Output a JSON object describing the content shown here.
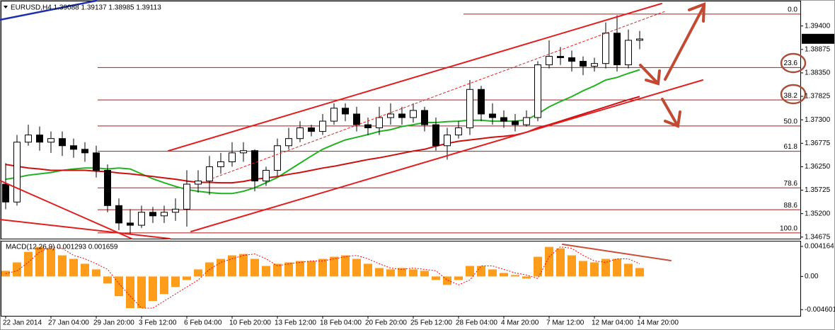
{
  "chart_data": [
    {
      "type": "candlestick",
      "title": "EURUSD,H4  1.39088 1.39137 1.38985 1.39113",
      "categories": [
        "22 Jan 2014",
        null,
        null,
        null,
        "27 Jan 04:00",
        null,
        null,
        null,
        "29 Jan 20:00",
        null,
        null,
        null,
        "3 Feb 12:00",
        null,
        null,
        null,
        "6 Feb 04:00",
        null,
        null,
        null,
        "10 Feb 20:00",
        null,
        null,
        null,
        "13 Feb 12:00",
        null,
        null,
        null,
        "18 Feb 04:00",
        null,
        null,
        null,
        "20 Feb 20:00",
        null,
        null,
        null,
        "25 Feb 12:00",
        null,
        null,
        null,
        "28 Feb 04:00",
        null,
        null,
        null,
        "4 Mar 20:00",
        null,
        null,
        null,
        "7 Mar 12:00",
        null,
        null,
        null,
        "12 Mar 04:00",
        null,
        null,
        null,
        "14 Mar 20:00"
      ],
      "open": [
        1.3586,
        1.3546,
        1.368,
        1.3696,
        1.368,
        1.3688,
        1.3672,
        1.3664,
        1.3656,
        1.3617,
        1.3538,
        1.3499,
        1.3494,
        1.3523,
        1.3515,
        1.3523,
        1.353,
        1.3586,
        1.3593,
        1.3625,
        1.3636,
        1.3656,
        1.3661,
        1.3593,
        1.3617,
        1.3672,
        1.3688,
        1.3712,
        1.3704,
        1.3727,
        1.3756,
        1.3743,
        1.3719,
        1.3712,
        1.3735,
        1.3743,
        1.3735,
        1.3751,
        1.3719,
        1.3672,
        1.3696,
        1.3712,
        1.3798,
        1.3743,
        1.3735,
        1.3727,
        1.3719,
        1.3735,
        1.3853,
        1.3872,
        1.3869,
        1.3861,
        1.385,
        1.3856,
        1.3924,
        1.3853,
        1.3908
      ],
      "high": [
        1.3633,
        1.3696,
        1.3719,
        1.3715,
        1.3704,
        1.3704,
        1.3688,
        1.368,
        1.3672,
        1.363,
        1.3554,
        1.353,
        1.3538,
        1.3535,
        1.3538,
        1.3554,
        1.3617,
        1.3617,
        1.3649,
        1.3656,
        1.368,
        1.368,
        1.3664,
        1.3625,
        1.3688,
        1.3712,
        1.3727,
        1.3719,
        1.3743,
        1.3767,
        1.3767,
        1.3759,
        1.3735,
        1.3759,
        1.3767,
        1.3759,
        1.3767,
        1.3759,
        1.3735,
        1.3712,
        1.3727,
        1.3819,
        1.3806,
        1.3767,
        1.3751,
        1.3743,
        1.3751,
        1.3861,
        1.3908,
        1.3893,
        1.3885,
        1.3872,
        1.3869,
        1.3948,
        1.3964,
        1.3932,
        1.3929
      ],
      "low": [
        1.353,
        1.3538,
        1.3672,
        1.3661,
        1.3656,
        1.3649,
        1.3645,
        1.3636,
        1.3601,
        1.3523,
        1.3483,
        1.3475,
        1.3488,
        1.3499,
        1.3499,
        1.3504,
        1.3491,
        1.3567,
        1.3562,
        1.3609,
        1.3625,
        1.3636,
        1.357,
        1.3582,
        1.3604,
        1.3664,
        1.368,
        1.3693,
        1.3696,
        1.3719,
        1.3727,
        1.3704,
        1.3696,
        1.3696,
        1.3719,
        1.3719,
        1.3724,
        1.3704,
        1.3661,
        1.3641,
        1.3688,
        1.3696,
        1.3727,
        1.3719,
        1.3712,
        1.3704,
        1.3715,
        1.3727,
        1.3845,
        1.3853,
        1.3838,
        1.383,
        1.3838,
        1.3845,
        1.3838,
        1.3845,
        1.3888
      ],
      "close": [
        1.3546,
        1.368,
        1.3696,
        1.368,
        1.3688,
        1.3672,
        1.3664,
        1.3656,
        1.3617,
        1.3538,
        1.3499,
        1.3494,
        1.3523,
        1.3515,
        1.3523,
        1.353,
        1.3586,
        1.3593,
        1.3625,
        1.3636,
        1.3656,
        1.3661,
        1.3593,
        1.3617,
        1.3672,
        1.3688,
        1.3712,
        1.3704,
        1.3727,
        1.3756,
        1.3743,
        1.3719,
        1.3712,
        1.3735,
        1.3743,
        1.3735,
        1.3751,
        1.3719,
        1.3672,
        1.3696,
        1.3712,
        1.3798,
        1.3743,
        1.3735,
        1.3727,
        1.3719,
        1.3735,
        1.3853,
        1.3872,
        1.3869,
        1.3861,
        1.385,
        1.3856,
        1.3924,
        1.3853,
        1.3908,
        1.3911
      ],
      "up_color": "#ffffff",
      "down_color": "#000000",
      "moving_averages": [
        {
          "color": "#22b322",
          "values": [
            1.3597,
            1.3601,
            1.3606,
            1.3609,
            1.3612,
            1.3617,
            1.362,
            1.3622,
            1.3622,
            1.362,
            1.3622,
            1.362,
            1.3609,
            1.3598,
            1.3589,
            1.3581,
            1.3574,
            1.357,
            1.3567,
            1.3565,
            1.3565,
            1.357,
            1.3578,
            1.3589,
            1.3601,
            1.3617,
            1.3633,
            1.3649,
            1.3664,
            1.3675,
            1.3685,
            1.3691,
            1.3697,
            1.3704,
            1.3708,
            1.3715,
            1.3719,
            1.3724,
            1.3724,
            1.3726,
            1.3727,
            1.3729,
            1.3729,
            1.3727,
            1.3727,
            1.3727,
            1.373,
            1.3743,
            1.3759,
            1.3771,
            1.3782,
            1.3795,
            1.3806,
            1.3819,
            1.3825,
            1.3834,
            1.3842
          ]
        },
        {
          "color": "#cc1111",
          "values": [
            1.363,
            1.3626,
            1.3622,
            1.362,
            1.3617,
            1.3617,
            1.3617,
            1.3617,
            1.3615,
            1.3614,
            1.3611,
            1.3609,
            1.3606,
            1.3603,
            1.36,
            1.3597,
            1.3593,
            1.359,
            1.359,
            1.3589,
            1.3589,
            1.3592,
            1.3597,
            1.36,
            1.3603,
            1.3608,
            1.3612,
            1.3617,
            1.3622,
            1.3626,
            1.3631,
            1.3636,
            1.3641,
            1.3645,
            1.365,
            1.3655,
            1.366,
            1.3664,
            1.3671,
            1.3677,
            1.3682,
            1.3685,
            1.3688,
            1.3691,
            1.3693,
            1.3696,
            1.3702,
            1.3712,
            1.3719,
            1.3727,
            1.3735,
            1.3743,
            1.3751,
            1.3759,
            1.3767,
            1.3775,
            1.3782
          ]
        }
      ],
      "fib_color": "#b01818",
      "fib_levels": [
        {
          "label": "0.0",
          "price": 1.39667
        },
        {
          "label": "23.6",
          "price": 1.3847
        },
        {
          "label": "38.2",
          "price": 1.37745
        },
        {
          "label": "50.0",
          "price": 1.37163
        },
        {
          "label": "61.8",
          "price": 1.36596
        },
        {
          "label": "78.6",
          "price": 1.35777
        },
        {
          "label": "88.6",
          "price": 1.35288
        },
        {
          "label": "100.0",
          "price": 1.34769
        }
      ],
      "last_price": {
        "value": 1.39113,
        "label": "1.39113"
      },
      "ylim": [
        1.3464,
        1.3995
      ],
      "yticks": [
        {
          "value": 1.394,
          "label": "1.39400"
        },
        1.38875,
        {
          "value": 1.3835,
          "label": "1.38350"
        },
        1.37825,
        {
          "value": 1.373,
          "label": "1.37300"
        },
        1.36775,
        {
          "value": 1.3625,
          "label": "1.36250"
        },
        1.35725,
        {
          "value": 1.352,
          "label": "1.35200"
        },
        1.34675
      ]
    },
    {
      "type": "bar",
      "title": "MACD(12,26,9) 0.001293 0.001659",
      "color": "#ff9c1a",
      "values": [
        0.00078,
        0.00195,
        0.00341,
        0.0041,
        0.0039,
        0.00293,
        0.00244,
        0.00176,
        0.00098,
        -0.00098,
        -0.00273,
        -0.00439,
        -0.00439,
        -0.00341,
        -0.00244,
        -0.00146,
        -0.00049,
        0.00098,
        0.00195,
        0.00244,
        0.00293,
        0.00312,
        0.00244,
        0.00146,
        0.00176,
        0.00195,
        0.00215,
        0.00215,
        0.00244,
        0.00273,
        0.00293,
        0.00244,
        0.00176,
        0.00117,
        0.00098,
        0.00117,
        0.00098,
        0.00078,
        -0.00049,
        -0.00117,
        -0.00049,
        0.00146,
        0.00146,
        0.00098,
        0.00049,
        0.0002,
        -0.00029,
        0.00273,
        0.0041,
        0.0039,
        0.00293,
        0.00215,
        0.00195,
        0.00244,
        0.00244,
        0.00176,
        0.00117
      ],
      "signal": {
        "color": "#ff0000",
        "values": [
          0.0004,
          0.00078,
          0.00195,
          0.00341,
          0.0041,
          0.0039,
          0.00293,
          0.00244,
          0.00176,
          0.00098,
          -0.00098,
          -0.00273,
          -0.00439,
          -0.00439,
          -0.00341,
          -0.00244,
          -0.00146,
          -0.00049,
          0.00098,
          0.00195,
          0.00244,
          0.00293,
          0.00312,
          0.00244,
          0.00146,
          0.00176,
          0.00195,
          0.00215,
          0.00215,
          0.00244,
          0.00273,
          0.00293,
          0.00244,
          0.00176,
          0.00117,
          0.00098,
          0.00117,
          0.00098,
          0.00078,
          -0.00049,
          -0.00117,
          -0.00049,
          0.00146,
          0.00146,
          0.00098,
          0.00049,
          0.0002,
          -0.00029,
          0.00273,
          0.0041,
          0.0039,
          0.00293,
          0.00215,
          0.00195,
          0.00244,
          0.00244,
          0.00176
        ]
      },
      "ylim": [
        -0.00556,
        0.00485
      ],
      "yticks": [
        0.004164,
        {
          "value": 0,
          "label": "0.00"
        },
        -0.004601
      ]
    }
  ]
}
